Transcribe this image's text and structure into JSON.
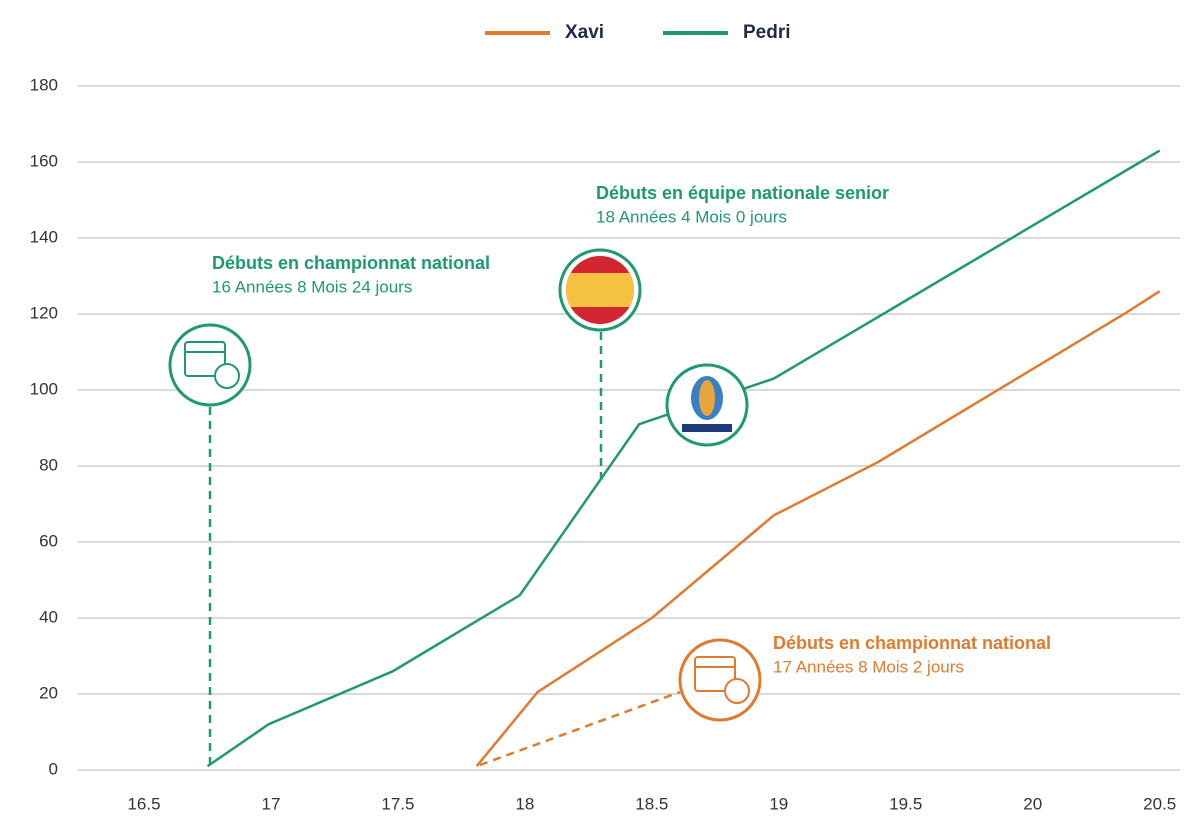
{
  "chart_data": {
    "type": "line",
    "series": [
      {
        "name": "Xavi",
        "color": "#e07a2e",
        "x": [
          17.81,
          18.05,
          18.5,
          18.98,
          19.39,
          20.36,
          20.5
        ],
        "values": [
          1,
          20.5,
          40,
          67,
          81,
          120,
          126
        ]
      },
      {
        "name": "Pedri",
        "color": "#1e9a6e",
        "x": [
          16.75,
          16.99,
          17.48,
          17.98,
          18.45,
          18.98,
          20.5
        ],
        "values": [
          1,
          12,
          26,
          46,
          91,
          103,
          163
        ]
      }
    ],
    "xlim": [
      16.24,
      20.58
    ],
    "ylim": [
      0,
      180
    ],
    "xticks": [
      16.5,
      17,
      17.5,
      18,
      18.5,
      19,
      19.5,
      20,
      20.5
    ],
    "yticks": [
      0,
      20,
      40,
      60,
      80,
      100,
      120,
      140,
      160,
      180
    ],
    "grid": true,
    "annotations": [
      {
        "title": "Débuts en championnat national",
        "text": "16 Années 8 Mois 24 jours"
      },
      {
        "title": "Débuts en équipe nationale senior",
        "text": "18 Années 4 Mois 0 jours"
      },
      {
        "title": "Débuts en championnat national",
        "text": "17 Années 8 Mois 2 jours"
      }
    ]
  }
}
